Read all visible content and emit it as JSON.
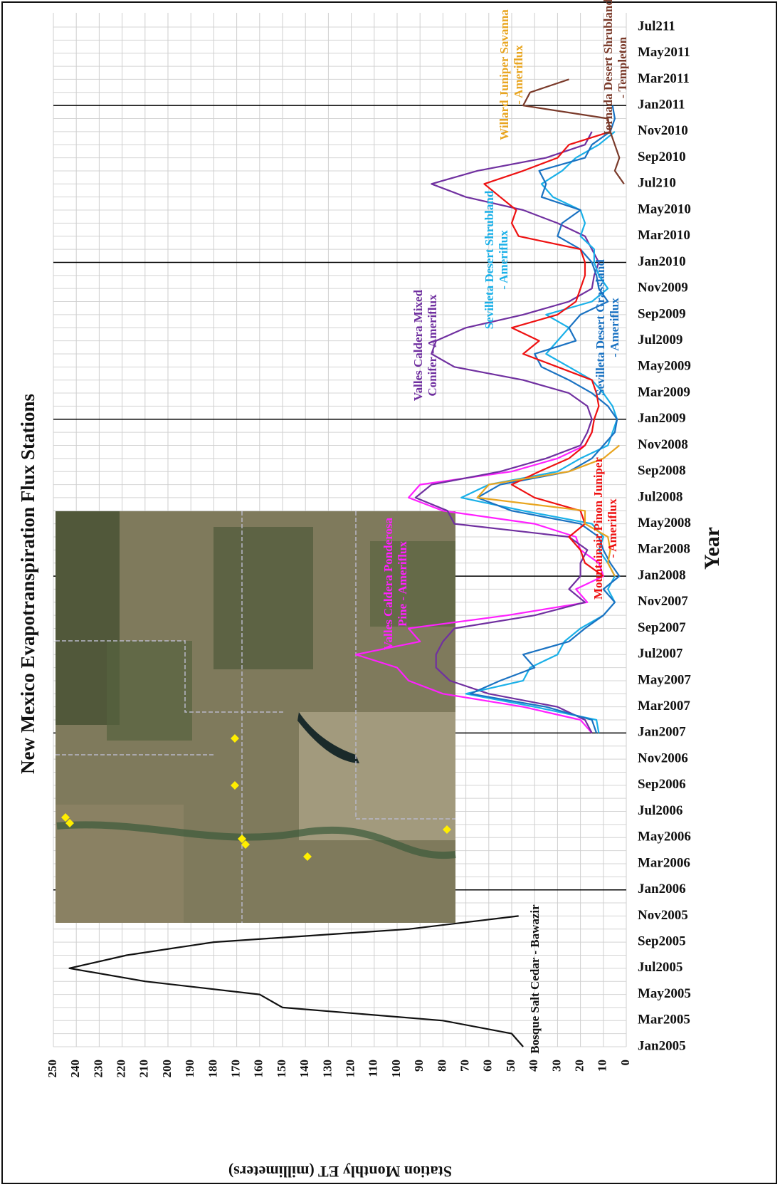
{
  "chart_data": {
    "type": "line",
    "title": "New Mexico Evapotranspiration Flux Stations",
    "x_label": "Year",
    "y_label": "Station  Monthly ET (millimeters)",
    "categories": [
      "Jan2005",
      null,
      "Mar2005",
      null,
      "May2005",
      null,
      "Jul2005",
      null,
      "Sep2005",
      null,
      "Nov2005",
      null,
      "Jan2006",
      null,
      "Mar2006",
      null,
      "May2006",
      null,
      "Jul2006",
      null,
      "Sep2006",
      null,
      "Nov2006",
      null,
      "Jan2007",
      null,
      "Mar2007",
      null,
      "May2007",
      null,
      "Jul2007",
      null,
      "Sep2007",
      null,
      "Nov2007",
      null,
      "Jan2008",
      null,
      "Mar2008",
      null,
      "May2008",
      null,
      "Jul2008",
      null,
      "Sep2008",
      null,
      "Nov2008",
      null,
      "Jan2009",
      null,
      "Mar2009",
      null,
      "May2009",
      null,
      "Jul2009",
      null,
      "Sep2009",
      null,
      "Nov2009",
      null,
      "Jan2010",
      null,
      "Mar2010",
      null,
      "May2010",
      null,
      "Jul210",
      null,
      "Sep2010",
      null,
      "Nov2010",
      null,
      "Jan2011",
      null,
      "Mar2011",
      null,
      "May2011",
      null,
      "Jul211"
    ],
    "xlim": [
      0,
      250
    ],
    "xticks": [
      0,
      10,
      20,
      30,
      40,
      50,
      60,
      70,
      80,
      90,
      100,
      110,
      120,
      130,
      140,
      150,
      160,
      170,
      180,
      190,
      200,
      210,
      220,
      230,
      240,
      250
    ],
    "grid": true,
    "series": [
      {
        "name": "Bosque Salt Cedar - Bawazir",
        "color": "#111111",
        "values": [
          45,
          50,
          80,
          150,
          160,
          210,
          243,
          218,
          180,
          95,
          47,
          null,
          null,
          null,
          null,
          null,
          null,
          null,
          null,
          null,
          null,
          null,
          null,
          null,
          null,
          null,
          null,
          null,
          null,
          null,
          null,
          null,
          null,
          null,
          null,
          null,
          null,
          null,
          null,
          null,
          null,
          null,
          null,
          null,
          null,
          null,
          null,
          null,
          null,
          null,
          null,
          null,
          null,
          null,
          null,
          null,
          null,
          null,
          null,
          null,
          null,
          null,
          null,
          null,
          null,
          null,
          null,
          null,
          null,
          null,
          null,
          null,
          null,
          null,
          null,
          null,
          null,
          null,
          null
        ]
      },
      {
        "name": "Valles Caldera Ponderosa Pine - Ameriflux",
        "color": "#ff20ff",
        "values": [
          null,
          null,
          null,
          null,
          null,
          null,
          null,
          null,
          null,
          null,
          null,
          null,
          null,
          null,
          null,
          null,
          null,
          null,
          null,
          null,
          null,
          null,
          null,
          null,
          15,
          20,
          45,
          80,
          95,
          100,
          118,
          90,
          95,
          52,
          17,
          22,
          10,
          12,
          20,
          22,
          40,
          80,
          95,
          90,
          50,
          30,
          18,
          15,
          null,
          null,
          null,
          null,
          null,
          null,
          null,
          null,
          null,
          null,
          null,
          null,
          null,
          null,
          null,
          null,
          null,
          null,
          null,
          null,
          null,
          null,
          null,
          null,
          null,
          null,
          null,
          null,
          null,
          null,
          null
        ]
      },
      {
        "name": "Valles Caldera Mixed Conifer - Ameriflux",
        "color": "#7030a0",
        "values": [
          null,
          null,
          null,
          null,
          null,
          null,
          null,
          null,
          null,
          null,
          null,
          null,
          null,
          null,
          null,
          null,
          null,
          null,
          null,
          null,
          null,
          null,
          null,
          null,
          15,
          18,
          30,
          60,
          77,
          83,
          83,
          80,
          75,
          40,
          18,
          25,
          20,
          20,
          17,
          25,
          75,
          78,
          92,
          85,
          55,
          35,
          20,
          17,
          15,
          17,
          25,
          45,
          75,
          85,
          83,
          70,
          45,
          25,
          15,
          14,
          12,
          15,
          18,
          30,
          45,
          70,
          85,
          65,
          35,
          18,
          15,
          null,
          null,
          null,
          null,
          null,
          null,
          null,
          null
        ]
      },
      {
        "name": "Sevilleta Desert Shrubland - Ameriflux",
        "color": "#1ab0e8",
        "values": [
          null,
          null,
          null,
          null,
          null,
          null,
          null,
          null,
          null,
          null,
          null,
          null,
          null,
          null,
          null,
          null,
          null,
          null,
          null,
          null,
          null,
          null,
          null,
          null,
          12,
          13,
          40,
          70,
          45,
          42,
          30,
          27,
          20,
          10,
          5,
          8,
          5,
          8,
          12,
          10,
          15,
          45,
          72,
          60,
          30,
          20,
          8,
          6,
          4,
          6,
          10,
          15,
          25,
          35,
          30,
          25,
          35,
          15,
          8,
          12,
          14,
          14,
          20,
          18,
          20,
          32,
          37,
          28,
          22,
          12,
          5,
          null,
          null,
          null,
          null,
          null,
          null,
          null,
          null
        ]
      },
      {
        "name": "Sevilleta Desert Grassland - Ameriflux",
        "color": "#1a72c2",
        "values": [
          null,
          null,
          null,
          null,
          null,
          null,
          null,
          null,
          null,
          null,
          null,
          null,
          null,
          null,
          null,
          null,
          null,
          null,
          null,
          null,
          null,
          null,
          null,
          null,
          13,
          15,
          35,
          68,
          55,
          40,
          45,
          25,
          18,
          10,
          5,
          10,
          3,
          7,
          10,
          12,
          20,
          50,
          65,
          55,
          25,
          15,
          10,
          5,
          4,
          8,
          15,
          25,
          37,
          40,
          22,
          25,
          20,
          8,
          12,
          13,
          15,
          20,
          30,
          28,
          20,
          37,
          35,
          38,
          18,
          15,
          7,
          5,
          6,
          null,
          null,
          null,
          null,
          null,
          null
        ]
      },
      {
        "name": "Mountainair Pinon Juniper - Ameriflux",
        "color": "#ee1111",
        "values": [
          null,
          null,
          null,
          null,
          null,
          null,
          null,
          null,
          null,
          null,
          null,
          null,
          null,
          null,
          null,
          null,
          null,
          null,
          null,
          null,
          null,
          null,
          null,
          null,
          null,
          null,
          null,
          null,
          null,
          null,
          null,
          null,
          null,
          null,
          null,
          null,
          10,
          18,
          20,
          25,
          18,
          20,
          40,
          50,
          38,
          25,
          18,
          15,
          14,
          12,
          13,
          15,
          30,
          45,
          38,
          50,
          30,
          22,
          20,
          18,
          18,
          20,
          47,
          50,
          48,
          55,
          62,
          45,
          30,
          25,
          7,
          null,
          null,
          null,
          null,
          null,
          null,
          null,
          null
        ]
      },
      {
        "name": "Willard Juniper Savanna - Ameriflux",
        "color": "#e8a520",
        "values": [
          null,
          null,
          null,
          null,
          null,
          null,
          null,
          null,
          null,
          null,
          null,
          null,
          null,
          null,
          null,
          null,
          null,
          null,
          null,
          null,
          null,
          null,
          null,
          null,
          null,
          null,
          null,
          null,
          null,
          null,
          null,
          null,
          null,
          null,
          null,
          null,
          5,
          8,
          7,
          8,
          18,
          18,
          65,
          60,
          25,
          10,
          3,
          null,
          null,
          null,
          null,
          null,
          null,
          null,
          null,
          null,
          null,
          null,
          null,
          null,
          null,
          null,
          null,
          null,
          null,
          null,
          null,
          null,
          null,
          null,
          null,
          null,
          null,
          null,
          null,
          null,
          null,
          null,
          null
        ]
      },
      {
        "name": "Jornada Desert Shrubland - Templeton",
        "color": "#7a3a2a",
        "values": [
          null,
          null,
          null,
          null,
          null,
          null,
          null,
          null,
          null,
          null,
          null,
          null,
          null,
          null,
          null,
          null,
          null,
          null,
          null,
          null,
          null,
          null,
          null,
          null,
          null,
          null,
          null,
          null,
          null,
          null,
          null,
          null,
          null,
          null,
          null,
          null,
          null,
          null,
          null,
          null,
          null,
          null,
          null,
          null,
          null,
          null,
          null,
          null,
          null,
          null,
          null,
          null,
          null,
          null,
          null,
          null,
          null,
          null,
          null,
          null,
          null,
          null,
          null,
          null,
          null,
          null,
          1,
          5,
          3,
          5,
          7,
          8,
          45,
          42,
          25,
          null,
          null,
          null,
          null
        ]
      }
    ]
  }
}
